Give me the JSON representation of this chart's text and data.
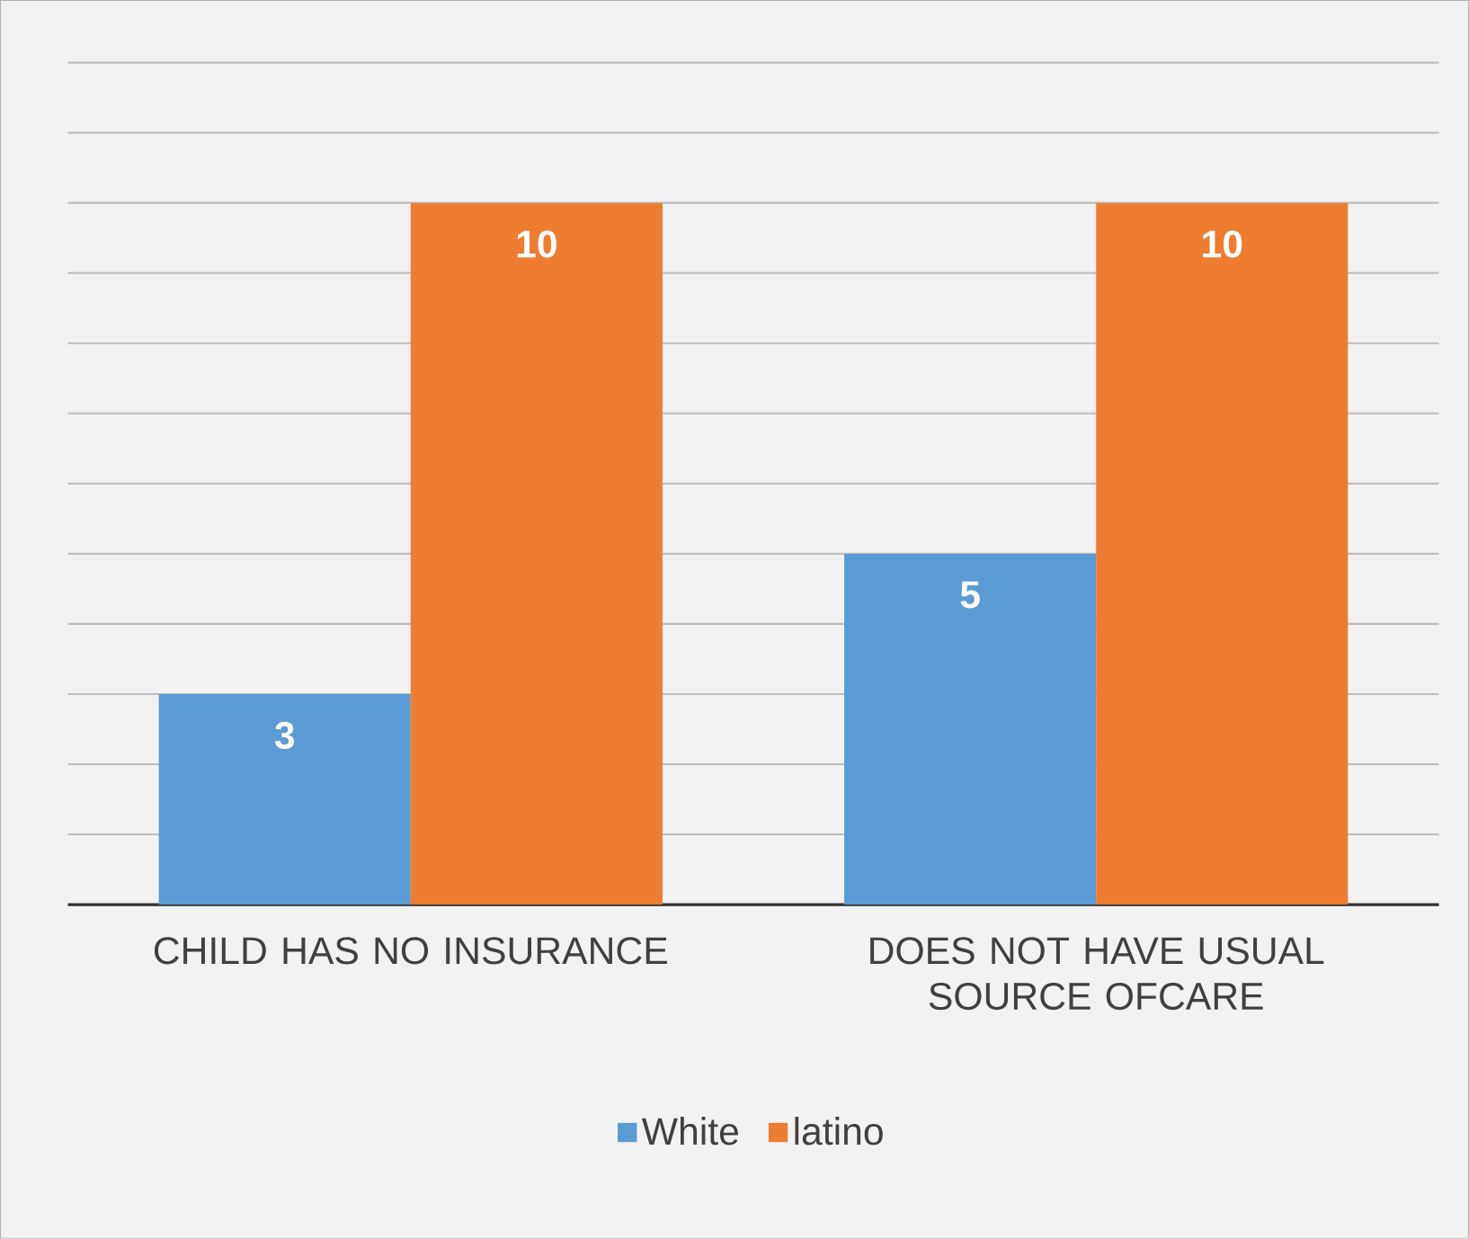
{
  "chart_data": {
    "type": "bar",
    "categories": [
      "CHILD HAS NO INSURANCE",
      "DOES NOT HAVE USUAL SOURCE OFCARE"
    ],
    "series": [
      {
        "name": "White",
        "color": "#5b9bd5",
        "values": [
          3,
          5
        ]
      },
      {
        "name": "latino",
        "color": "#ed7d31",
        "values": [
          10,
          10
        ]
      }
    ],
    "tick_labels": "x",
    "grid": "y",
    "legend": "bottom",
    "data_labels": true
  }
}
